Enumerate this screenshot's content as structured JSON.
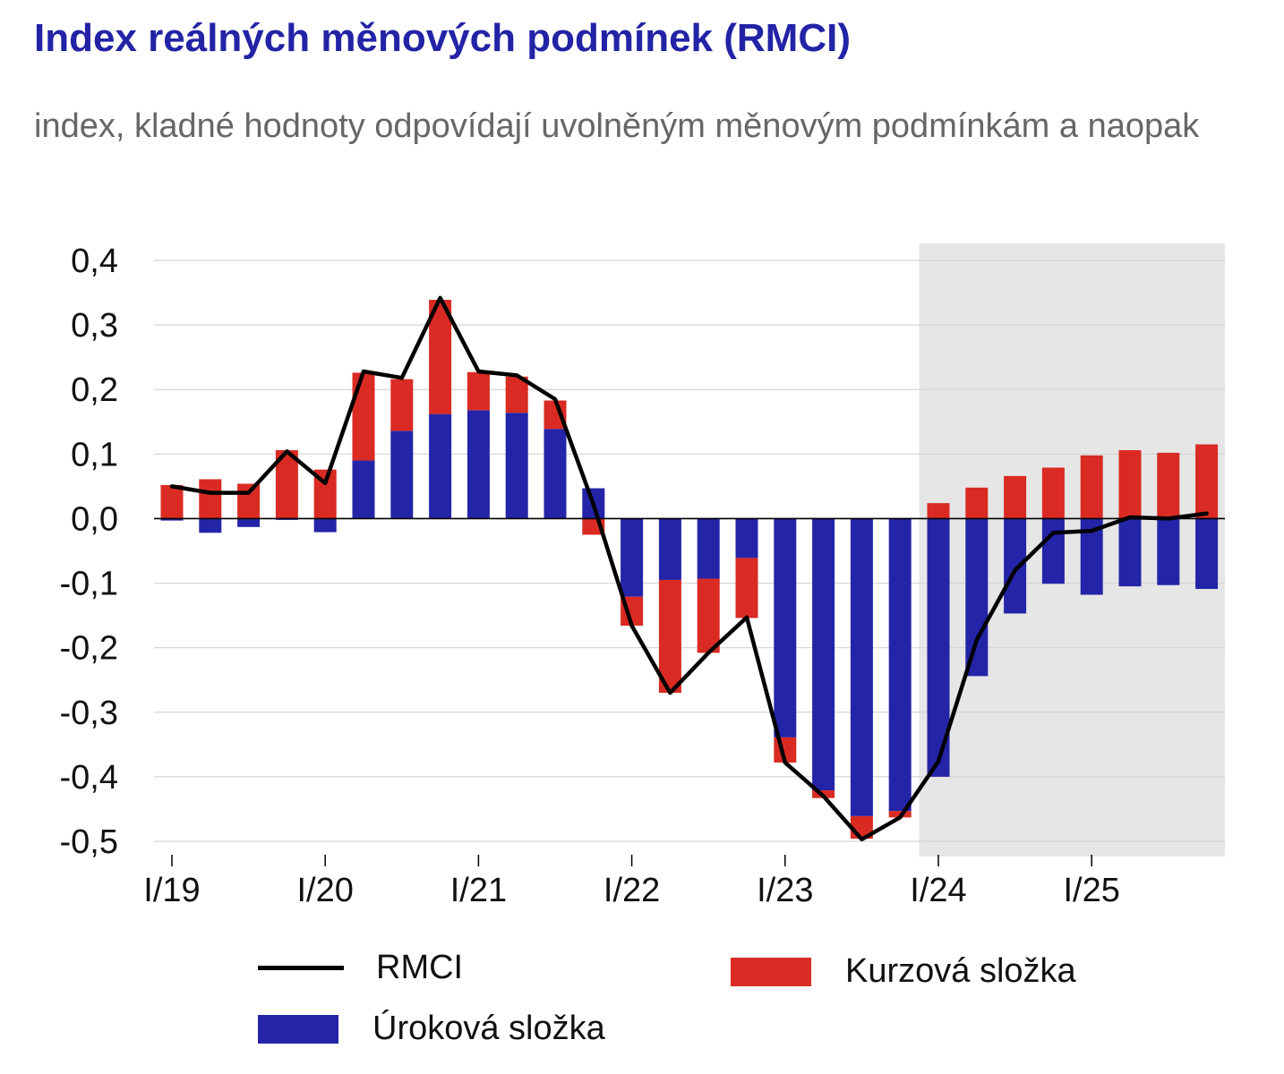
{
  "title": "Index reálných měnových podmínek (RMCI)",
  "subtitle": "index, kladné hodnoty odpovídají uvolněným měnovým podmínkám a naopak",
  "chart_data": {
    "type": "bar",
    "stacked": true,
    "categories": [
      "I/19",
      "II/19",
      "III/19",
      "IV/19",
      "I/20",
      "II/20",
      "III/20",
      "IV/20",
      "I/21",
      "II/21",
      "III/21",
      "IV/21",
      "I/22",
      "II/22",
      "III/22",
      "IV/22",
      "I/23",
      "II/23",
      "III/23",
      "IV/23",
      "I/24",
      "II/24",
      "III/24",
      "IV/24",
      "I/25",
      "II/25",
      "III/25",
      "IV/25"
    ],
    "x_tick_labels": [
      "I/19",
      "I/20",
      "I/21",
      "I/22",
      "I/23",
      "I/24",
      "I/25"
    ],
    "y_tick_labels": [
      "0,4",
      "0,3",
      "0,2",
      "0,1",
      "0,0",
      "-0,1",
      "-0,2",
      "-0,3",
      "-0,4",
      "-0,5"
    ],
    "ylim": [
      -0.5,
      0.4
    ],
    "grid": true,
    "forecast_shading_from": "I/24",
    "legend_position": "bottom",
    "series": [
      {
        "name": "Úroková složka",
        "kind": "bar",
        "color": "#2424a8",
        "values": [
          -0.003,
          -0.022,
          -0.013,
          -0.002,
          -0.021,
          0.09,
          0.136,
          0.162,
          0.168,
          0.164,
          0.139,
          0.047,
          -0.121,
          -0.095,
          -0.093,
          -0.061,
          -0.339,
          -0.421,
          -0.461,
          -0.453,
          -0.4,
          -0.244,
          -0.147,
          -0.101,
          -0.118,
          -0.105,
          -0.103,
          -0.109
        ]
      },
      {
        "name": "Kurzová složka",
        "kind": "bar",
        "color": "#d92b23",
        "values": [
          0.052,
          0.061,
          0.054,
          0.106,
          0.076,
          0.136,
          0.08,
          0.177,
          0.059,
          0.056,
          0.044,
          -0.025,
          -0.045,
          -0.175,
          -0.115,
          -0.093,
          -0.039,
          -0.012,
          -0.035,
          -0.01,
          0.024,
          0.048,
          0.066,
          0.079,
          0.098,
          0.106,
          0.102,
          0.115
        ]
      },
      {
        "name": "RMCI",
        "kind": "line",
        "color": "#000000",
        "values": [
          0.05,
          0.04,
          0.04,
          0.104,
          0.055,
          0.228,
          0.218,
          0.342,
          0.228,
          0.222,
          0.185,
          0.022,
          -0.166,
          -0.27,
          -0.208,
          -0.153,
          -0.378,
          -0.43,
          -0.497,
          -0.463,
          -0.376,
          -0.188,
          -0.08,
          -0.022,
          -0.019,
          0.002,
          0.0,
          0.008
        ]
      }
    ]
  },
  "legend": {
    "rmci": "RMCI",
    "kurzova": "Kurzová složka",
    "urokova": "Úroková složka"
  }
}
